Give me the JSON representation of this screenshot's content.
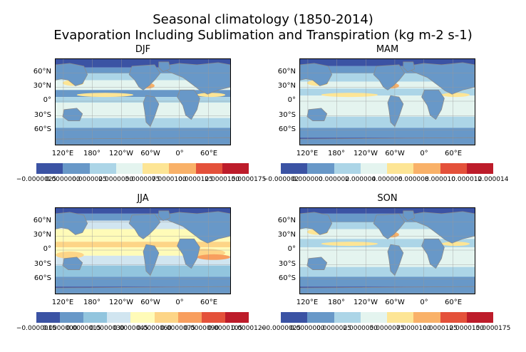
{
  "chart_data": [
    {
      "type": "heatmap",
      "title": "DJF",
      "lat_ticks": [
        "60°N",
        "30°N",
        "0°",
        "30°S",
        "60°S"
      ],
      "lon_ticks": [
        "120°E",
        "180°",
        "120°W",
        "60°W",
        "0°",
        "60°E"
      ],
      "colorbar_ticks": [
        "−0.0000025",
        "0.0000000",
        "0.0000025",
        "0.0000050",
        "0.0000075",
        "0.0000100",
        "0.0000125",
        "0.0000150",
        "0.0000175"
      ],
      "colorbar_colors": [
        "#3b53a4",
        "#6898c8",
        "#acd5e7",
        "#e4f4ef",
        "#fde595",
        "#f9b168",
        "#e4513a",
        "#bd1c2a"
      ]
    },
    {
      "type": "heatmap",
      "title": "MAM",
      "lat_ticks": [
        "60°N",
        "30°N",
        "0°",
        "30°S",
        "60°S"
      ],
      "lon_ticks": [
        "120°E",
        "180°",
        "120°W",
        "60°W",
        "0°",
        "60°E"
      ],
      "colorbar_ticks": [
        "−0.000002",
        "0.000000",
        "0.000002",
        "0.000004",
        "0.000006",
        "0.000008",
        "0.000010",
        "0.000012",
        "0.000014"
      ],
      "colorbar_colors": [
        "#3b53a4",
        "#6898c8",
        "#acd5e7",
        "#e4f4ef",
        "#fde595",
        "#f9b168",
        "#e4513a",
        "#bd1c2a"
      ]
    },
    {
      "type": "heatmap",
      "title": "JJA",
      "lat_ticks": [
        "60°N",
        "30°N",
        "0°",
        "30°S",
        "60°S"
      ],
      "lon_ticks": [
        "120°E",
        "180°",
        "120°W",
        "60°W",
        "0°",
        "60°E"
      ],
      "colorbar_ticks": [
        "−0.0000015",
        "0.0000000",
        "0.0000015",
        "0.0000030",
        "0.0000045",
        "0.0000060",
        "0.0000075",
        "0.0000090",
        "0.0000105",
        "0.0000120"
      ],
      "colorbar_colors": [
        "#3b53a4",
        "#6898c8",
        "#92c5de",
        "#d1e5f0",
        "#fffbb8",
        "#fdd587",
        "#f89e5e",
        "#e4513a",
        "#bd1c2a"
      ]
    },
    {
      "type": "heatmap",
      "title": "SON",
      "lat_ticks": [
        "60°N",
        "30°N",
        "0°",
        "30°S",
        "60°S"
      ],
      "lon_ticks": [
        "120°E",
        "180°",
        "120°W",
        "60°W",
        "0°",
        "60°E"
      ],
      "colorbar_ticks": [
        "−0.0000025",
        "0.0000000",
        "0.0000025",
        "0.0000050",
        "0.0000075",
        "0.0000100",
        "0.0000125",
        "0.0000150",
        "0.0000175"
      ],
      "colorbar_colors": [
        "#3b53a4",
        "#6898c8",
        "#acd5e7",
        "#e4f4ef",
        "#fde595",
        "#f9b168",
        "#e4513a",
        "#bd1c2a"
      ]
    }
  ],
  "header": {
    "title_line1": "Seasonal climatology  (1850-2014)",
    "title_line2": "Evaporation Including Sublimation and Transpiration (kg m-2 s-1)"
  },
  "colors": {
    "land_outline": "#8a8a8a",
    "gridline": "#9a9a9a"
  }
}
